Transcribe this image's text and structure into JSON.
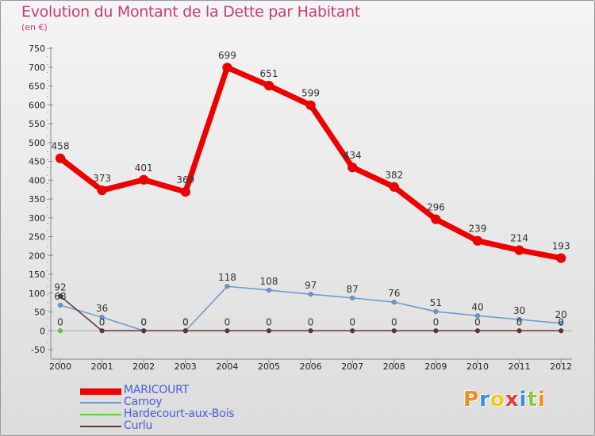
{
  "header": {
    "title": "Evolution du Montant de la Dette par Habitant",
    "subtitle": "(en €)"
  },
  "chart_data": {
    "type": "line",
    "title": "Evolution du Montant de la Dette par Habitant",
    "ylabel": "(en €)",
    "xlabel": "",
    "x": [
      "2000",
      "2001",
      "2002",
      "2003",
      "2004",
      "2005",
      "2006",
      "2007",
      "2008",
      "2009",
      "2010",
      "2011",
      "2012"
    ],
    "ylim": [
      -50,
      750
    ],
    "yticks": [
      -50,
      0,
      50,
      100,
      150,
      200,
      250,
      300,
      350,
      400,
      450,
      500,
      550,
      600,
      650,
      700,
      750
    ],
    "grid": false,
    "legend_position": "bottom-left",
    "series": [
      {
        "name": "MARICOURT",
        "color": "#ee0000",
        "values": [
          458,
          373,
          401,
          369,
          699,
          651,
          599,
          434,
          382,
          296,
          239,
          214,
          193
        ]
      },
      {
        "name": "Carnoy",
        "color": "#6699cc",
        "values": [
          68,
          36,
          0,
          0,
          118,
          108,
          97,
          87,
          76,
          51,
          40,
          30,
          20
        ]
      },
      {
        "name": "Hardecourt-aux-Bois",
        "color": "#66cc33",
        "values": [
          0,
          null,
          null,
          null,
          null,
          null,
          null,
          null,
          null,
          null,
          null,
          null,
          null
        ]
      },
      {
        "name": "Curlu",
        "color": "#663333",
        "values": [
          92,
          0,
          0,
          0,
          0,
          0,
          0,
          0,
          0,
          0,
          0,
          0,
          0
        ]
      }
    ]
  },
  "legend": {
    "items": [
      {
        "label": "MARICOURT",
        "color": "#ee0000"
      },
      {
        "label": "Carnoy",
        "color": "#6699cc"
      },
      {
        "label": "Hardecourt-aux-Bois",
        "color": "#66cc33"
      },
      {
        "label": "Curlu",
        "color": "#663333"
      }
    ]
  },
  "logo": {
    "text": "Proxiti",
    "letters": [
      {
        "ch": "P",
        "color": "#f08c1e"
      },
      {
        "ch": "r",
        "color": "#3c8ce6"
      },
      {
        "ch": "o",
        "color": "#f0c81e"
      },
      {
        "ch": "x",
        "color": "#e63c3c"
      },
      {
        "ch": "i",
        "color": "#3c8ce6"
      },
      {
        "ch": "t",
        "color": "#8cc83c"
      },
      {
        "ch": "i",
        "color": "#f08c1e"
      }
    ]
  }
}
